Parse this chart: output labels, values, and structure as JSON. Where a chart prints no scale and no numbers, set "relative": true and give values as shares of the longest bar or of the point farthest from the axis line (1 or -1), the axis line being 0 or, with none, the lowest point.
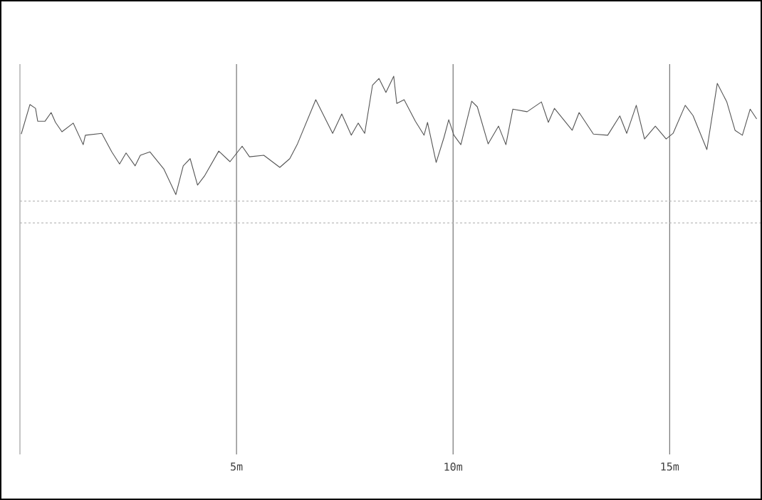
{
  "chart_data": {
    "type": "line",
    "relative": true,
    "grid": "x",
    "tick_labels": "x",
    "marker": "none",
    "line_style": "solid",
    "xlim": [
      0,
      17.1
    ],
    "xticks": [
      {
        "value": 5,
        "label": "5m"
      },
      {
        "value": 10,
        "label": "10m"
      },
      {
        "value": 15,
        "label": "15m"
      }
    ],
    "x": [
      0.03,
      0.23,
      0.36,
      0.41,
      0.58,
      0.72,
      0.82,
      0.97,
      1.23,
      1.46,
      1.51,
      1.89,
      2.12,
      2.3,
      2.45,
      2.66,
      2.78,
      3.0,
      3.32,
      3.6,
      3.77,
      3.93,
      4.1,
      4.26,
      4.59,
      4.85,
      5.13,
      5.3,
      5.63,
      6.0,
      6.23,
      6.4,
      6.83,
      7.22,
      7.43,
      7.65,
      7.81,
      7.96,
      8.14,
      8.29,
      8.45,
      8.63,
      8.7,
      8.87,
      9.13,
      9.33,
      9.41,
      9.61,
      9.79,
      9.9,
      10.02,
      10.18,
      10.43,
      10.56,
      10.81,
      11.05,
      11.22,
      11.38,
      11.71,
      12.04,
      12.2,
      12.34,
      12.75,
      12.91,
      13.24,
      13.57,
      13.85,
      14.01,
      14.23,
      14.42,
      14.67,
      14.92,
      15.08,
      15.36,
      15.54,
      15.86,
      16.1,
      16.32,
      16.51,
      16.68,
      16.86,
      17.01
    ],
    "series": [
      {
        "color": "#555555",
        "values": [
          0.847,
          0.925,
          0.915,
          0.881,
          0.881,
          0.904,
          0.878,
          0.853,
          0.876,
          0.819,
          0.844,
          0.849,
          0.8,
          0.768,
          0.797,
          0.763,
          0.791,
          0.8,
          0.755,
          0.687,
          0.763,
          0.782,
          0.712,
          0.736,
          0.802,
          0.774,
          0.815,
          0.787,
          0.791,
          0.759,
          0.782,
          0.819,
          0.938,
          0.849,
          0.9,
          0.844,
          0.876,
          0.849,
          0.976,
          0.994,
          0.957,
          1,
          0.928,
          0.938,
          0.881,
          0.844,
          0.878,
          0.772,
          0.838,
          0.885,
          0.844,
          0.819,
          0.934,
          0.919,
          0.821,
          0.868,
          0.819,
          0.913,
          0.906,
          0.932,
          0.878,
          0.915,
          0.857,
          0.904,
          0.847,
          0.844,
          0.895,
          0.849,
          0.923,
          0.834,
          0.868,
          0.834,
          0.849,
          0.923,
          0.896,
          0.806,
          0.981,
          0.932,
          0.857,
          0.844,
          0.913,
          0.887
        ]
      }
    ],
    "ref_lines": [
      {
        "axis": "y",
        "value": 0.67,
        "color": "#aaaaaa",
        "line_style": "dashed"
      },
      {
        "axis": "y",
        "value": 0.612,
        "color": "#aaaaaa",
        "line_style": "dashed"
      }
    ]
  }
}
